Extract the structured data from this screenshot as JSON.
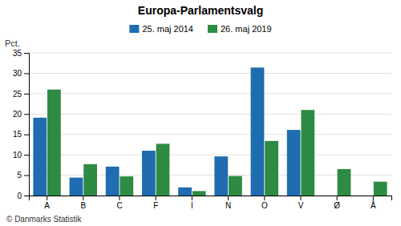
{
  "chart_data": {
    "type": "bar",
    "title": "Europa-Parlamentsvalg",
    "categories": [
      "A",
      "B",
      "C",
      "F",
      "I",
      "N",
      "O",
      "V",
      "Ø",
      "Å"
    ],
    "series": [
      {
        "name": "25. maj 2014",
        "color": "#1f6cb0",
        "values": [
          19.1,
          4.4,
          7.1,
          11.0,
          2.0,
          9.6,
          31.4,
          16.1,
          0.0,
          0.0
        ]
      },
      {
        "name": "26. maj 2019",
        "color": "#2e8b43",
        "values": [
          26.0,
          7.7,
          4.7,
          12.7,
          1.1,
          4.8,
          13.4,
          21.0,
          6.5,
          3.4
        ]
      }
    ],
    "ylabel": "Pct.",
    "ylim": [
      0,
      35
    ],
    "yticks": [
      0,
      5,
      10,
      15,
      20,
      25,
      30,
      35
    ],
    "grid": true,
    "legend": "top",
    "annotations": [
      "© Danmarks Statistik"
    ]
  }
}
